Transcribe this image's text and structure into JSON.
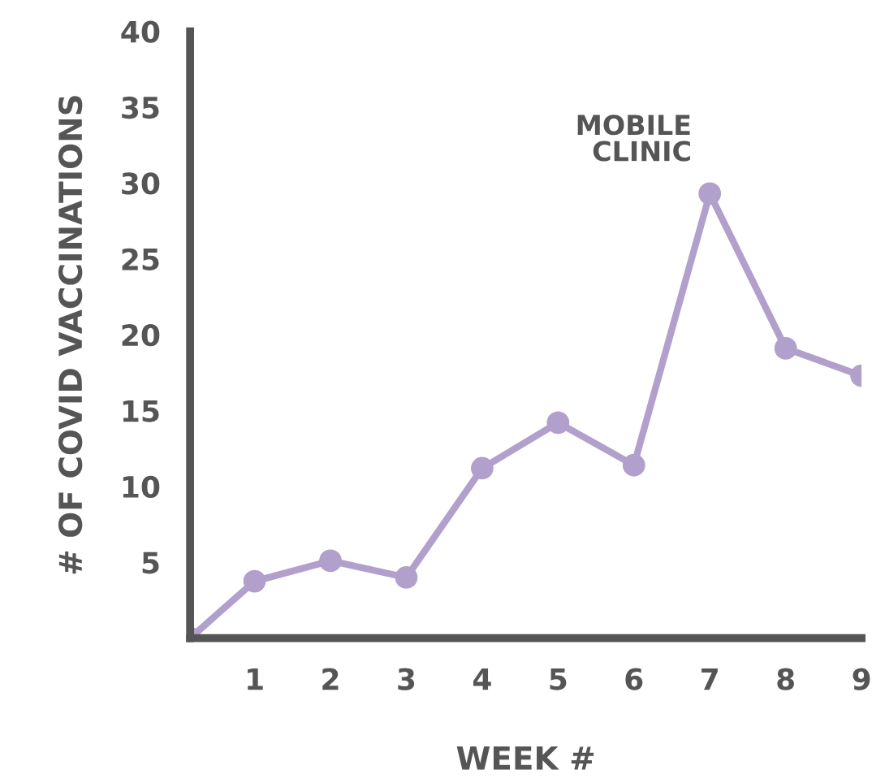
{
  "chart_data": {
    "type": "line",
    "xlabel": "WEEK #",
    "ylabel": "# OF COVID VACCINATIONS",
    "x": [
      0.15,
      1,
      2,
      3,
      4,
      5,
      6,
      7,
      8,
      9
    ],
    "series": [
      {
        "color": "#b1a0cc",
        "values": [
          0,
          3.75,
          5.1,
          4,
          11.2,
          14.2,
          11.4,
          29.3,
          19.1,
          17.3
        ]
      }
    ],
    "xlim": [
      0.15,
      9
    ],
    "xticks": [
      1,
      2,
      3,
      4,
      5,
      6,
      7,
      8,
      9
    ],
    "ylim": [
      0,
      40
    ],
    "yticks": [
      5,
      10,
      15,
      20,
      25,
      30,
      35,
      40
    ],
    "annotations": [
      {
        "text": "MOBILE\nCLINIC",
        "x": 7,
        "y": 29.3
      }
    ],
    "grid": false,
    "legend": false,
    "marker": "circle",
    "line_style": "solid"
  }
}
